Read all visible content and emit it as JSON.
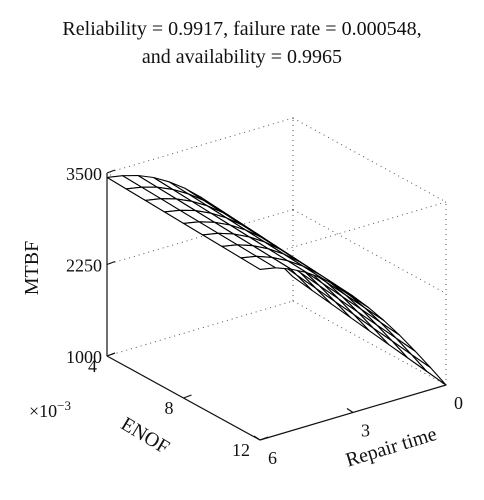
{
  "title_lines": [
    "Reliability = 0.9917, failure rate = 0.000548,",
    "and availability = 0.9965"
  ],
  "chart_data": {
    "type": "surface",
    "title": "Reliability = 0.9917, failure rate = 0.000548, and availability = 0.9965",
    "xlabel": "Repair time",
    "ylabel": "ENOF",
    "zlabel": "MTBF",
    "y_scale_note": "×10",
    "y_scale_exponent": "−3",
    "x_ticks": [
      "0",
      "3",
      "6"
    ],
    "y_ticks": [
      "4",
      "8",
      "12"
    ],
    "z_ticks": [
      "1000",
      "2250",
      "3500"
    ],
    "xlim": [
      0,
      6
    ],
    "ylim": [
      0.004,
      0.012
    ],
    "zlim": [
      1000,
      3500
    ],
    "grid": "dotted box",
    "surface_color": "#ffffff",
    "edge_color": "#000000",
    "repair_time": [
      0,
      0.5,
      1,
      1.5,
      2,
      2.5,
      3,
      3.5,
      4,
      4.5,
      5,
      5.5,
      6
    ],
    "enof_x1e3": [
      4,
      5,
      6,
      7,
      8,
      9,
      10,
      11,
      12
    ],
    "mtbf_at_enof_4": [
      1330,
      1600,
      1870,
      2130,
      2380,
      2600,
      2800,
      2980,
      3130,
      3250,
      3340,
      3400,
      3440
    ],
    "mtbf_at_enof_12": [
      1000,
      1300,
      1590,
      1870,
      2130,
      2370,
      2590,
      2790,
      2960,
      3100,
      3210,
      3290,
      3330
    ]
  }
}
